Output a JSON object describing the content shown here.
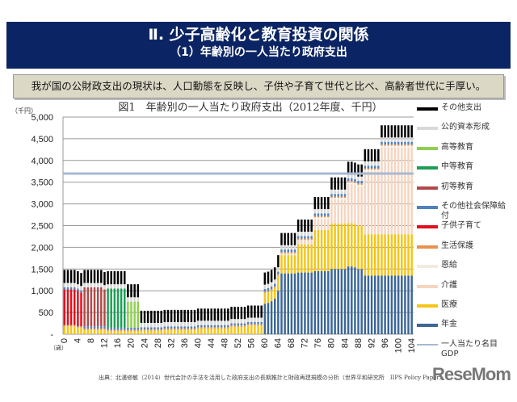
{
  "header": {
    "title": "Ⅱ. 少子高齢化と教育投資の関係",
    "subtitle": "（1）年齢別の一人当たり政府支出"
  },
  "lead": "我が国の公財政支出の現状は、人口動態を反映し、子供や子育て世代と比べ、高齢者世代に手厚い。",
  "source": "出典：北浦修敏（2014）世代会計の手法を活用した政府支出の長期推計と財政再建規模の分析（世界平和研究所　IIPS Policy Paper）",
  "logo": "ReseMom",
  "chart_data": {
    "type": "bar",
    "stacked": true,
    "title": "図1　年齢別の一人当たり政府支出（2012年度、千円）",
    "ylabel": "（千円）",
    "xlabel": "（歳）",
    "ylim": [
      0,
      5000
    ],
    "yticks": [
      0,
      500,
      1000,
      1500,
      2000,
      2500,
      3000,
      3500,
      4000,
      4500,
      5000
    ],
    "ytick_labels": [
      "-",
      "500",
      "1,000",
      "1,500",
      "2,000",
      "2,500",
      "3,000",
      "3,500",
      "4,000",
      "4,500",
      "5,000"
    ],
    "x_range": [
      0,
      104
    ],
    "xtick_step": 4,
    "grid": true,
    "legend": "right",
    "series_format": "[age_from, age_to, value]",
    "series": [
      {
        "name": "年金",
        "color": "#3c6796",
        "segments": [
          [
            60,
            60,
            700
          ],
          [
            61,
            61,
            720
          ],
          [
            62,
            62,
            760
          ],
          [
            63,
            63,
            820
          ],
          [
            64,
            64,
            1000
          ],
          [
            65,
            69,
            1400
          ],
          [
            70,
            74,
            1420
          ],
          [
            75,
            79,
            1450
          ],
          [
            80,
            84,
            1500
          ],
          [
            85,
            86,
            1560
          ],
          [
            87,
            87,
            1540
          ],
          [
            88,
            89,
            1500
          ],
          [
            90,
            104,
            1350
          ]
        ]
      },
      {
        "name": "医療",
        "color": "#f5c518",
        "segments": [
          [
            0,
            3,
            180
          ],
          [
            4,
            5,
            150
          ],
          [
            6,
            12,
            100
          ],
          [
            13,
            22,
            70
          ],
          [
            23,
            29,
            80
          ],
          [
            30,
            39,
            100
          ],
          [
            40,
            49,
            130
          ],
          [
            50,
            54,
            170
          ],
          [
            55,
            59,
            200
          ],
          [
            60,
            63,
            250
          ],
          [
            64,
            64,
            350
          ],
          [
            65,
            69,
            420
          ],
          [
            70,
            74,
            650
          ],
          [
            75,
            79,
            950
          ],
          [
            80,
            84,
            1050
          ],
          [
            85,
            89,
            1000
          ],
          [
            90,
            104,
            950
          ]
        ]
      },
      {
        "name": "介護",
        "color": "#f6d5c0",
        "segments": [
          [
            65,
            69,
            40
          ],
          [
            70,
            74,
            100
          ],
          [
            75,
            79,
            250
          ],
          [
            80,
            84,
            550
          ],
          [
            85,
            89,
            900
          ],
          [
            90,
            94,
            1450
          ],
          [
            95,
            104,
            2000
          ]
        ]
      },
      {
        "name": "恩給",
        "color": "#f3ebdf",
        "segments": [
          [
            75,
            104,
            40
          ]
        ]
      },
      {
        "name": "生活保護",
        "color": "#e8914e",
        "segments": [
          [
            0,
            104,
            30
          ]
        ]
      },
      {
        "name": "子供子育て",
        "color": "#e0101c",
        "segments": [
          [
            0,
            4,
            820
          ],
          [
            5,
            5,
            780
          ]
        ]
      },
      {
        "name": "その他社会保障給付",
        "color": "#4f81bd",
        "segments": [
          [
            0,
            59,
            50
          ],
          [
            60,
            104,
            60
          ]
        ]
      },
      {
        "name": "初等教育",
        "color": "#b04a4a",
        "segments": [
          [
            6,
            11,
            900
          ],
          [
            12,
            12,
            850
          ]
        ]
      },
      {
        "name": "中等教育",
        "color": "#1e9e55",
        "segments": [
          [
            13,
            18,
            900
          ]
        ]
      },
      {
        "name": "高等教育",
        "color": "#8fcf4f",
        "segments": [
          [
            19,
            22,
            600
          ]
        ]
      },
      {
        "name": "公的資本形成",
        "color": "#d9d9d9",
        "segments": [
          [
            0,
            104,
            100
          ]
        ]
      },
      {
        "name": "その他支出",
        "color": "#000000",
        "segments": [
          [
            0,
            22,
            300
          ],
          [
            23,
            104,
            280
          ]
        ]
      }
    ],
    "reference_line": {
      "name": "一人当たり名目GDP",
      "value": 3700,
      "color": "#a6b9d3"
    }
  }
}
